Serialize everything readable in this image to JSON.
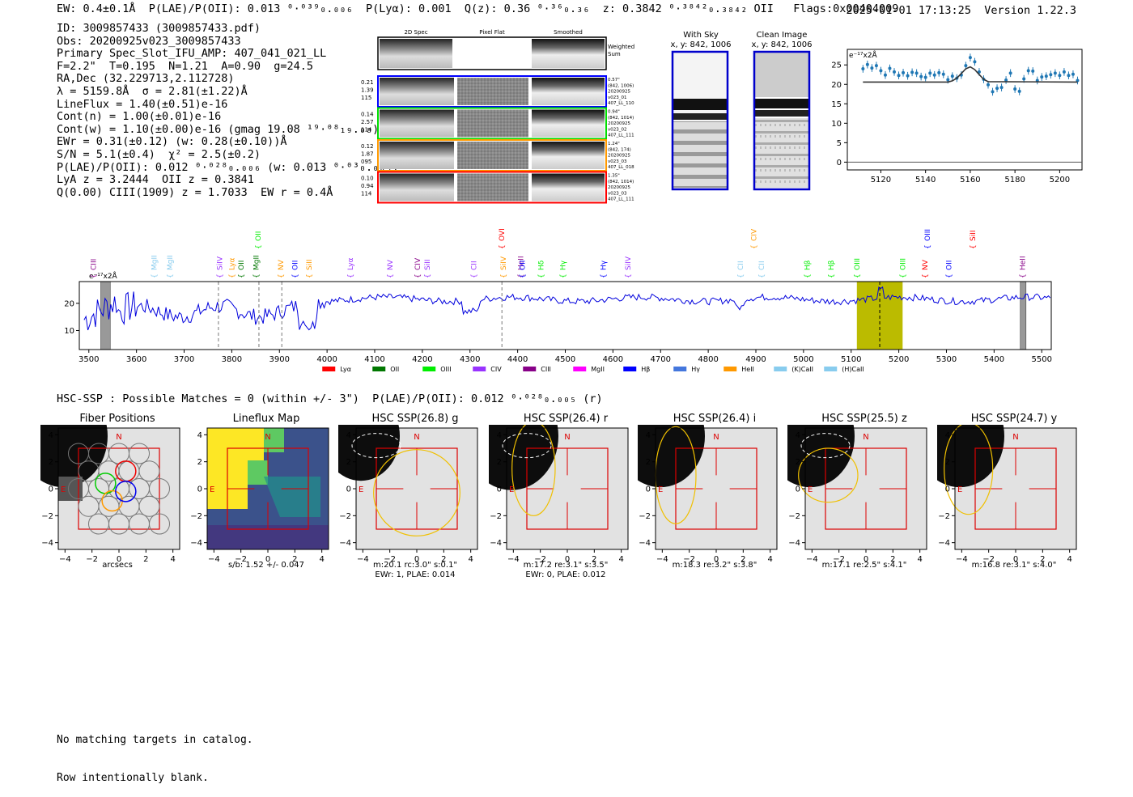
{
  "header": {
    "left": "EW: 0.4±0.1Å  P(LAE)/P(OII): 0.013 ⁰·⁰³⁹₀.₀₀₆  P(Lyα): 0.001  Q(z): 0.36 ⁰·³⁶₀.₃₆  z: 0.3842 ⁰·³⁸⁴²₀.₃₈₄₂ OII   Flags:0x00404009",
    "right": "2025-01-01 17:13:25  Version 1.22.3"
  },
  "info": [
    "ID: 3009857433 (3009857433.pdf)",
    "Obs: 20200925v023_3009857433",
    "Primary Spec_Slot_IFU_AMP: 407_041_021_LL",
    "F=2.2\"  T=0.195  N=1.21  A=0.90  g=24.5",
    "RA,Dec (32.229713,2.112728)",
    "λ = 5159.8Å  σ = 2.81(±1.22)Å",
    "LineFlux = 1.40(±0.51)e-16",
    "Cont(n) = 1.00(±0.01)e-16",
    "Cont(w) = 1.10(±0.00)e-16 (gmag 19.08 ¹⁹·⁰⁸₁₉.₀₈)",
    "EWr = 0.31(±0.12) (w: 0.28(±0.10))Å",
    "S/N = 5.1(±0.4)  χ² = 2.5(±0.2)",
    "P(LAE)/P(OII): 0.012 ⁰·⁰²⁸₀.₀₀₆ (w: 0.013 ⁰·⁰³₀.₀₀₅)",
    "LyA z = 3.2444  OII z = 0.3841",
    "Q(0.00) CIII(1909) z = 1.7033  EW r = 0.4Å"
  ],
  "cutouts": {
    "col_headers": [
      "2D Spec",
      "Pixel Flat",
      "Smoothed"
    ],
    "weighted_label": "Weighted Sum",
    "rows": [
      {
        "color": "#0000ff",
        "left": [
          "0.21",
          "1.39",
          "115"
        ],
        "right": [
          "0.57\"",
          "(842, 1006)",
          "20200925",
          "v023_01",
          "407_LL_110"
        ]
      },
      {
        "color": "#00dd00",
        "left": [
          "0.14",
          "2.57",
          "114"
        ],
        "right": [
          "0.94\"",
          "(842, 1014)",
          "20200925",
          "v023_02",
          "407_LL_111"
        ]
      },
      {
        "color": "#ff9900",
        "left": [
          "0.12",
          "1.87",
          "095"
        ],
        "right": [
          "1.24\"",
          "(842, 174)",
          "20200925",
          "v023_03",
          "407_LL_018"
        ]
      },
      {
        "color": "#ff0000",
        "left": [
          "0.10",
          "0.94",
          "114"
        ],
        "right": [
          "1.35\"",
          "(842, 1014)",
          "20200925",
          "v023_03",
          "407_LL_111"
        ]
      }
    ]
  },
  "sky": {
    "with_sky": [
      "With Sky",
      "x, y: 842, 1006"
    ],
    "clean": [
      "Clean Image",
      "x, y: 842, 1006"
    ]
  },
  "spectrum": {
    "unit_label": "e⁻¹⁷x2Å",
    "legend": [
      {
        "label": "Lyα",
        "color": "#ff0000"
      },
      {
        "label": "OII",
        "color": "#007700"
      },
      {
        "label": "OIII",
        "color": "#00ee00"
      },
      {
        "label": "CIV",
        "color": "#9933ff"
      },
      {
        "label": "CIII",
        "color": "#880088"
      },
      {
        "label": "MgII",
        "color": "#ff00ff"
      },
      {
        "label": "Hβ",
        "color": "#0000ff"
      },
      {
        "label": "Hγ",
        "color": "#4477dd"
      },
      {
        "label": "HeII",
        "color": "#ff9900"
      },
      {
        "label": "(K)CaII",
        "color": "#88ccee"
      },
      {
        "label": "(H)CaII",
        "color": "#88ccee"
      }
    ]
  },
  "hsc": {
    "summary": "HSC-SSP : Possible Matches = 0 (within +/- 3\")  P(LAE)/P(OII): 0.012 ⁰·⁰²⁸₀.₀₀₅ (r)",
    "panels": [
      {
        "title": "Fiber Positions",
        "caption": [
          "arcsecs"
        ]
      },
      {
        "title": "Lineflux Map",
        "caption": [
          "s/b: 1.52 +/- 0.047"
        ]
      },
      {
        "title": "HSC SSP(26.8) g",
        "caption": [
          "m:20.1 rc:3.0\"  s:0.1\"",
          "EWr: 1, PLAE: 0.014"
        ]
      },
      {
        "title": "HSC SSP(26.4) r",
        "caption": [
          "m:17.2  re:3.1\"  s:3.5\"",
          "EWr: 0, PLAE: 0.012"
        ]
      },
      {
        "title": "HSC SSP(26.4) i",
        "caption": [
          "m:18.3  re:3.2\"  s:3.8\""
        ]
      },
      {
        "title": "HSC SSP(25.5) z",
        "caption": [
          "m:17.1  re:2.5\"  s:4.1\""
        ]
      },
      {
        "title": "HSC SSP(24.7) y",
        "caption": [
          "m:16.8  re:3.1\"  s:4.0\""
        ]
      }
    ],
    "n_label": "N",
    "e_label": "E"
  },
  "footer": [
    "No matching targets in catalog.",
    "Row intentionally blank."
  ],
  "chart_data": [
    {
      "type": "scatter",
      "title": "",
      "unit_label": "e⁻¹⁷x2Å",
      "xlabel": "",
      "ylabel": "",
      "xlim": [
        5105,
        5210
      ],
      "ylim": [
        -2,
        29
      ],
      "xticks": [
        5120,
        5140,
        5160,
        5180,
        5200
      ],
      "yticks": [
        0,
        5,
        10,
        15,
        20,
        25
      ],
      "series": [
        {
          "name": "",
          "x": [
            5112,
            5114,
            5116,
            5118,
            5120,
            5122,
            5124,
            5126,
            5128,
            5130,
            5132,
            5134,
            5136,
            5138,
            5140,
            5142,
            5144,
            5146,
            5148,
            5150,
            5152,
            5154,
            5156,
            5158,
            5160,
            5162,
            5164,
            5166,
            5168,
            5170,
            5172,
            5174,
            5176,
            5178,
            5180,
            5182,
            5184,
            5186,
            5188,
            5190,
            5192,
            5194,
            5196,
            5198,
            5200,
            5202,
            5204,
            5206,
            5208
          ],
          "y": [
            24.0,
            25.1,
            24.2,
            24.8,
            23.5,
            22.4,
            24.1,
            23.2,
            22.3,
            23.0,
            22.2,
            23.1,
            22.9,
            22.0,
            21.8,
            22.9,
            22.4,
            23.0,
            22.6,
            21.2,
            22.1,
            21.6,
            22.4,
            24.8,
            26.9,
            25.8,
            23.2,
            21.3,
            19.9,
            18.1,
            19.0,
            19.2,
            21.1,
            22.9,
            18.8,
            18.2,
            21.4,
            23.5,
            23.4,
            21.0,
            21.9,
            22.1,
            22.5,
            22.9,
            22.3,
            23.2,
            22.3,
            22.6,
            21.0
          ]
        },
        {
          "name": "",
          "type": "line",
          "x": [
            5112,
            5150,
            5152,
            5154,
            5156,
            5158,
            5160,
            5162,
            5164,
            5166,
            5168,
            5208
          ],
          "y": [
            20.6,
            20.6,
            20.9,
            21.6,
            22.8,
            24.0,
            24.5,
            23.8,
            22.5,
            21.3,
            20.7,
            20.6
          ]
        }
      ]
    },
    {
      "type": "line",
      "title": "",
      "xlabel": "",
      "ylabel": "",
      "xlim": [
        3480,
        5520
      ],
      "ylim": [
        3,
        28
      ],
      "xticks": [
        3500,
        3600,
        3700,
        3800,
        3900,
        4000,
        4100,
        4200,
        4300,
        4400,
        4500,
        4600,
        4700,
        4800,
        4900,
        5000,
        5100,
        5200,
        5300,
        5400,
        5500
      ],
      "yticks": [
        10,
        20
      ],
      "highlight_range": [
        5112,
        5208
      ],
      "vlines": [
        3772,
        3857,
        3905,
        4367,
        5160
      ],
      "masked_ranges": [
        [
          3525,
          3545
        ],
        [
          5455,
          5467
        ]
      ],
      "line_labels": [
        {
          "label": "CIII",
          "x": 3510,
          "color": "#880088"
        },
        {
          "label": "MgII",
          "x": 3637,
          "color": "#88ccee"
        },
        {
          "label": "MgII",
          "x": 3670,
          "color": "#88ccee"
        },
        {
          "label": "SiIV",
          "x": 3775,
          "color": "#9933ff"
        },
        {
          "label": "Lyα",
          "x": 3800,
          "color": "#ff9900"
        },
        {
          "label": "OII",
          "x": 3820,
          "color": "#007700"
        },
        {
          "label": "MgII",
          "x": 3851,
          "color": "#007700"
        },
        {
          "label": "OII",
          "x": 3855,
          "color": "#00ee00"
        },
        {
          "label": "NV",
          "x": 3903,
          "color": "#ff9900"
        },
        {
          "label": "OII",
          "x": 3933,
          "color": "#0000ff"
        },
        {
          "label": "SiII",
          "x": 3962,
          "color": "#ff9900"
        },
        {
          "label": "Lyα",
          "x": 4049,
          "color": "#9933ff"
        },
        {
          "label": "NV",
          "x": 4132,
          "color": "#9933ff"
        },
        {
          "label": "CIV",
          "x": 4190,
          "color": "#880088"
        },
        {
          "label": "SiII",
          "x": 4210,
          "color": "#9933ff"
        },
        {
          "label": "CII",
          "x": 4308,
          "color": "#9933ff"
        },
        {
          "label": "OVI",
          "x": 4367,
          "color": "#ff0000"
        },
        {
          "label": "SiIV",
          "x": 4370,
          "color": "#ff9900"
        },
        {
          "label": "HeII",
          "x": 4407,
          "color": "#880088"
        },
        {
          "label": "OII",
          "x": 4410,
          "color": "#0000ff"
        },
        {
          "label": "Hδ",
          "x": 4449,
          "color": "#00ee00"
        },
        {
          "label": "Hγ",
          "x": 4495,
          "color": "#00ee00"
        },
        {
          "label": "Hγ",
          "x": 4580,
          "color": "#0000ff"
        },
        {
          "label": "SiIV",
          "x": 4632,
          "color": "#9933ff"
        },
        {
          "label": "CII",
          "x": 4868,
          "color": "#88ccee"
        },
        {
          "label": "CIV",
          "x": 4896,
          "color": "#ff9900"
        },
        {
          "label": "CII",
          "x": 4912,
          "color": "#88ccee"
        },
        {
          "label": "Hβ",
          "x": 5008,
          "color": "#00ee00"
        },
        {
          "label": "Hβ",
          "x": 5058,
          "color": "#00ee00"
        },
        {
          "label": "OIII",
          "x": 5112,
          "color": "#00ee00"
        },
        {
          "label": "OIII",
          "x": 5208,
          "color": "#00ee00"
        },
        {
          "label": "NV",
          "x": 5255,
          "color": "#ff0000"
        },
        {
          "label": "OIII",
          "x": 5260,
          "color": "#0000ff"
        },
        {
          "label": "OII",
          "x": 5305,
          "color": "#0000ff"
        },
        {
          "label": "SiII",
          "x": 5355,
          "color": "#ff0000"
        },
        {
          "label": "HeII",
          "x": 5460,
          "color": "#880088"
        }
      ]
    }
  ]
}
